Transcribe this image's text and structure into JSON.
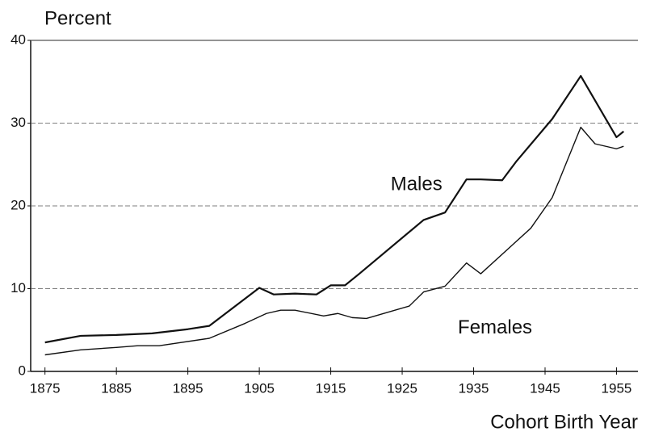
{
  "chart_data": {
    "type": "line",
    "y_label": "Percent",
    "x_label": "Cohort Birth Year",
    "series": [
      {
        "name": "Males",
        "color": "#111111",
        "x": [
          1875,
          1880,
          1885,
          1890,
          1895,
          1898,
          1905,
          1907,
          1910,
          1913,
          1915,
          1917,
          1919,
          1928,
          1931,
          1934,
          1936,
          1939,
          1941,
          1946,
          1950,
          1955,
          1956
        ],
        "values": [
          3.5,
          4.3,
          4.4,
          4.6,
          5.1,
          5.5,
          10.1,
          9.3,
          9.4,
          9.3,
          10.4,
          10.4,
          11.8,
          18.3,
          19.2,
          23.2,
          23.2,
          23.1,
          25.4,
          30.5,
          35.7,
          28.3,
          29.0
        ]
      },
      {
        "name": "Females",
        "color": "#111111",
        "x": [
          1875,
          1880,
          1885,
          1888,
          1891,
          1898,
          1903,
          1906,
          1908,
          1910,
          1914,
          1916,
          1918,
          1920,
          1926,
          1928,
          1931,
          1934,
          1936,
          1943,
          1946,
          1950,
          1952,
          1955,
          1956
        ],
        "values": [
          2.0,
          2.6,
          2.9,
          3.1,
          3.1,
          4.0,
          5.8,
          7.0,
          7.4,
          7.4,
          6.7,
          7.0,
          6.5,
          6.4,
          7.9,
          9.6,
          10.3,
          13.1,
          11.8,
          17.3,
          21.0,
          29.5,
          27.5,
          26.9,
          27.2
        ]
      }
    ],
    "xlim": [
      1873,
      1958
    ],
    "ylim": [
      0,
      40
    ],
    "xticks": [
      1875,
      1885,
      1895,
      1905,
      1915,
      1925,
      1935,
      1945,
      1955
    ],
    "yticks": [
      0,
      10,
      20,
      30,
      40
    ],
    "grid": true
  }
}
